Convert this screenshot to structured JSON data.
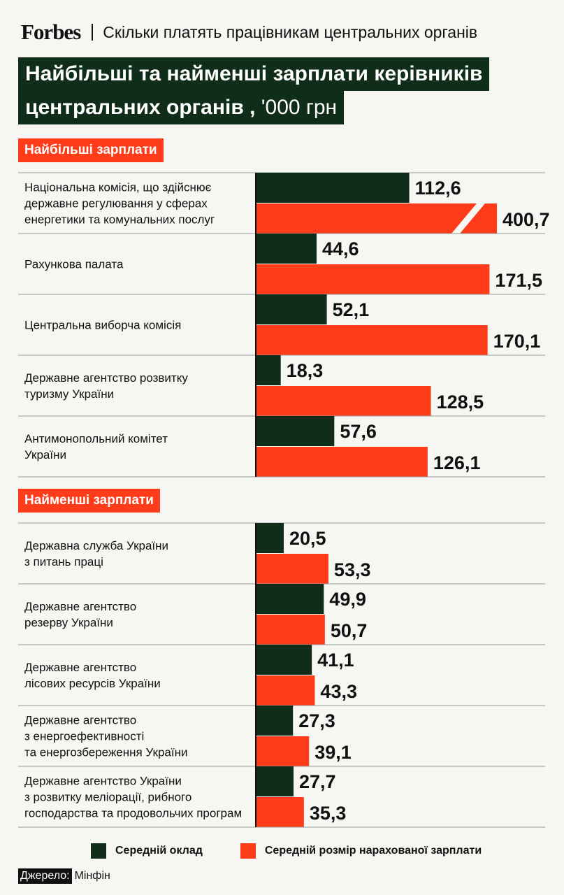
{
  "header": {
    "brand": "Forbes",
    "subtitle": "Скільки платять працівникам центральних органів"
  },
  "title": {
    "line1": "Найбільші та найменші зарплати керівників",
    "line2": "центральних органів ,",
    "unit": "'000 грн"
  },
  "colors": {
    "salary": "#0f2d19",
    "accrued": "#ff3c1a",
    "title_bg": "#0f2d19",
    "section_bg": "#ff3c1a"
  },
  "chart_data": {
    "type": "bar",
    "orientation": "horizontal",
    "unit": "'000 грн",
    "legend": [
      "Середній оклад",
      "Середній розмір нарахованої зарплати"
    ],
    "sections": [
      {
        "title": "Найбільші зарплати",
        "rows": [
          {
            "label": [
              "Національна комісія, що здійснює",
              "державне регулювання у сферах",
              "енергетики та комунальних послуг"
            ],
            "salary": 112.6,
            "accrued": 400.7,
            "salary_text": "112,6",
            "accrued_text": "400,7",
            "axis_break": true
          },
          {
            "label": [
              "Рахункова палата"
            ],
            "salary": 44.6,
            "accrued": 171.5,
            "salary_text": "44,6",
            "accrued_text": "171,5"
          },
          {
            "label": [
              "Центральна виборча комісія"
            ],
            "salary": 52.1,
            "accrued": 170.1,
            "salary_text": "52,1",
            "accrued_text": "170,1"
          },
          {
            "label": [
              "Державне агентство розвитку",
              "туризму України"
            ],
            "salary": 18.3,
            "accrued": 128.5,
            "salary_text": "18,3",
            "accrued_text": "128,5"
          },
          {
            "label": [
              "Антимонопольний комітет",
              "України"
            ],
            "salary": 57.6,
            "accrued": 126.1,
            "salary_text": "57,6",
            "accrued_text": "126,1"
          }
        ]
      },
      {
        "title": "Найменші зарплати",
        "rows": [
          {
            "label": [
              "Державна служба України",
              "з питань праці"
            ],
            "salary": 20.5,
            "accrued": 53.3,
            "salary_text": "20,5",
            "accrued_text": "53,3"
          },
          {
            "label": [
              "Державне агентство",
              "резерву України"
            ],
            "salary": 49.9,
            "accrued": 50.7,
            "salary_text": "49,9",
            "accrued_text": "50,7"
          },
          {
            "label": [
              "Державне агентство",
              "лісових ресурсів України"
            ],
            "salary": 41.1,
            "accrued": 43.3,
            "salary_text": "41,1",
            "accrued_text": "43,3"
          },
          {
            "label": [
              "Державне агентство",
              "з енергоефективності",
              "та енергозбереження України"
            ],
            "salary": 27.3,
            "accrued": 39.1,
            "salary_text": "27,3",
            "accrued_text": "39,1"
          },
          {
            "label": [
              "Державне агентство України",
              "з розвитку меліорації, рибного",
              "господарства та продовольчих програм"
            ],
            "salary": 27.7,
            "accrued": 35.3,
            "salary_text": "27,7",
            "accrued_text": "35,3"
          }
        ]
      }
    ]
  },
  "source": {
    "label": "Джерело:",
    "value": "Мінфін"
  }
}
